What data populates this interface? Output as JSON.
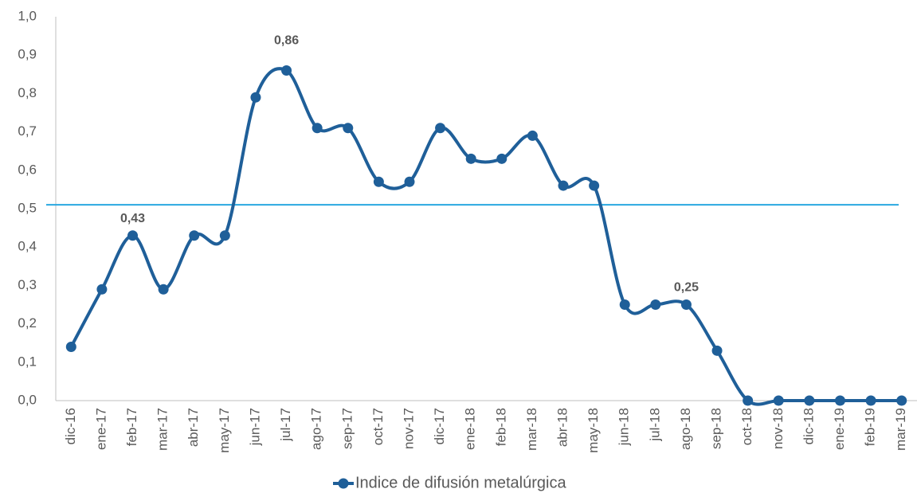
{
  "chart_data": {
    "type": "line",
    "categories": [
      "dic-16",
      "ene-17",
      "feb-17",
      "mar-17",
      "abr-17",
      "may-17",
      "jun-17",
      "jul-17",
      "ago-17",
      "sep-17",
      "oct-17",
      "nov-17",
      "dic-17",
      "ene-18",
      "feb-18",
      "mar-18",
      "abr-18",
      "may-18",
      "jun-18",
      "jul-18",
      "ago-18",
      "sep-18",
      "oct-18",
      "nov-18",
      "dic-18",
      "ene-19",
      "feb-19",
      "mar-19"
    ],
    "series": [
      {
        "name": "Indice de difusión metalúrgica",
        "color": "#1f5f99",
        "values": [
          0.14,
          0.29,
          0.43,
          0.29,
          0.43,
          0.43,
          0.79,
          0.86,
          0.71,
          0.71,
          0.57,
          0.57,
          0.71,
          0.63,
          0.63,
          0.69,
          0.56,
          0.56,
          0.25,
          0.25,
          0.25,
          0.13,
          0,
          0,
          0,
          0,
          0,
          0
        ],
        "value_labels": [
          null,
          null,
          "0,43",
          null,
          null,
          null,
          null,
          "0,86",
          null,
          null,
          null,
          null,
          null,
          null,
          null,
          null,
          null,
          null,
          null,
          null,
          "0,25",
          null,
          null,
          null,
          null,
          null,
          null,
          null
        ]
      }
    ],
    "ylim": [
      0,
      1
    ],
    "yticks": [
      {
        "value": 0,
        "label": "0,0"
      },
      {
        "value": 0.1,
        "label": "0,1"
      },
      {
        "value": 0.2,
        "label": "0,2"
      },
      {
        "value": 0.3,
        "label": "0,3"
      },
      {
        "value": 0.4,
        "label": "0,4"
      },
      {
        "value": 0.5,
        "label": "0,5"
      },
      {
        "value": 0.6,
        "label": "0,6"
      },
      {
        "value": 0.7,
        "label": "0,7"
      },
      {
        "value": 0.8,
        "label": "0,8"
      },
      {
        "value": 0.9,
        "label": "0,9"
      },
      {
        "value": 1,
        "label": "1,0"
      }
    ],
    "reference_line": {
      "value": 0.51,
      "color": "#29a8e0"
    },
    "legend": "bottom"
  }
}
